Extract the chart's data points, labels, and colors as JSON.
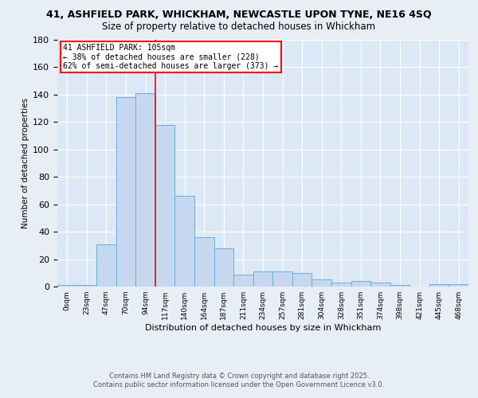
{
  "title_line1": "41, ASHFIELD PARK, WHICKHAM, NEWCASTLE UPON TYNE, NE16 4SQ",
  "title_line2": "Size of property relative to detached houses in Whickham",
  "xlabel": "Distribution of detached houses by size in Whickham",
  "ylabel": "Number of detached properties",
  "bar_labels": [
    "0sqm",
    "23sqm",
    "47sqm",
    "70sqm",
    "94sqm",
    "117sqm",
    "140sqm",
    "164sqm",
    "187sqm",
    "211sqm",
    "234sqm",
    "257sqm",
    "281sqm",
    "304sqm",
    "328sqm",
    "351sqm",
    "374sqm",
    "398sqm",
    "421sqm",
    "445sqm",
    "468sqm"
  ],
  "bar_values": [
    1,
    1,
    31,
    138,
    141,
    118,
    66,
    36,
    28,
    9,
    11,
    11,
    10,
    5,
    3,
    4,
    3,
    1,
    0,
    2,
    2
  ],
  "bar_color": "#c5d8ef",
  "bar_edge_color": "#6aaed6",
  "background_color": "#dce8f5",
  "fig_bg_color": "#e8eef5",
  "ylim": [
    0,
    180
  ],
  "yticks": [
    0,
    20,
    40,
    60,
    80,
    100,
    120,
    140,
    160,
    180
  ],
  "vline_x": 5.0,
  "annotation_text": "41 ASHFIELD PARK: 105sqm\n← 38% of detached houses are smaller (228)\n62% of semi-detached houses are larger (373) →",
  "footer_line1": "Contains HM Land Registry data © Crown copyright and database right 2025.",
  "footer_line2": "Contains public sector information licensed under the Open Government Licence v3.0."
}
